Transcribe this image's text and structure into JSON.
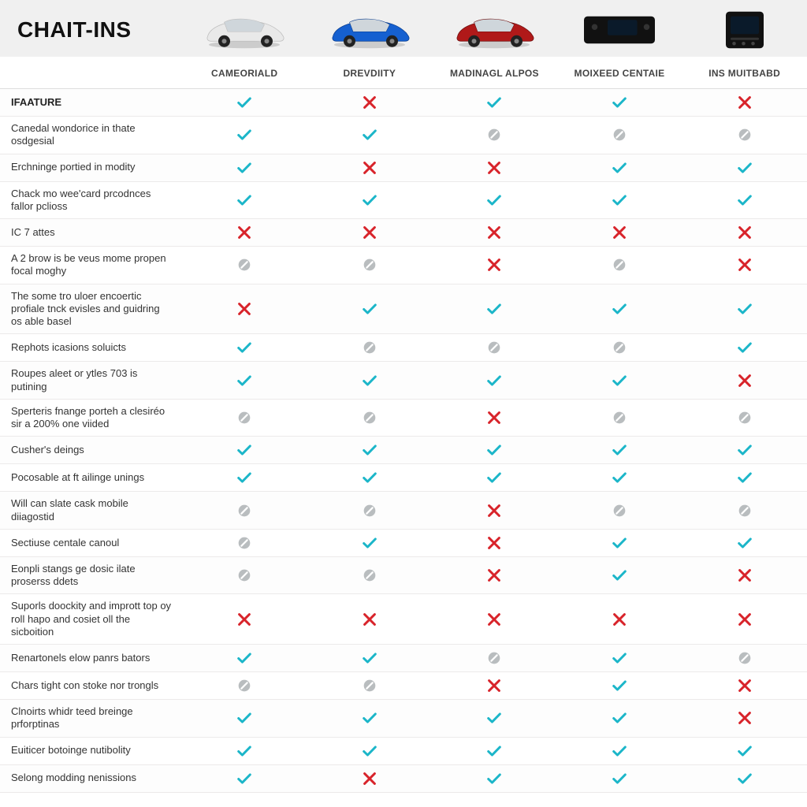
{
  "title": "CHAIT-INS",
  "colors": {
    "check": "#1cb6c9",
    "cross": "#d8232a",
    "neutral": "#b9bdbf",
    "header_bg": "#f0f0f0",
    "row_border": "#eceaea",
    "text": "#333333",
    "title_text": "#111111"
  },
  "columns": [
    {
      "id": "cameoriald",
      "label": "CAMEORIALD",
      "thumb": "car-white"
    },
    {
      "id": "drevdiity",
      "label": "DREVDIITY",
      "thumb": "car-blue"
    },
    {
      "id": "madinagl",
      "label": "MADINAGL ALPOS",
      "thumb": "car-red"
    },
    {
      "id": "moixeed",
      "label": "MOIXEED CENTAIE",
      "thumb": "device-wide"
    },
    {
      "id": "insmui",
      "label": "INS MUITBABD",
      "thumb": "device-square"
    }
  ],
  "section_label": "IFAATURE",
  "rows": [
    {
      "label": "IFAATURE",
      "section": true,
      "cells": [
        "check",
        "cross",
        "check",
        "check",
        "cross"
      ]
    },
    {
      "label": "Canedal wondorice in thate osdgesial",
      "cells": [
        "check",
        "check",
        "neutral",
        "neutral",
        "neutral"
      ]
    },
    {
      "label": "Erchninge portied in modity",
      "cells": [
        "check",
        "cross",
        "cross",
        "check",
        "check"
      ]
    },
    {
      "label": "Chack mo wee'card prcodnces fallor pclioss",
      "cells": [
        "check",
        "check",
        "check",
        "check",
        "check"
      ]
    },
    {
      "label": "IC 7 attes",
      "cells": [
        "cross",
        "cross",
        "cross",
        "cross",
        "cross"
      ]
    },
    {
      "label": "A 2 brow is be veus mome propen focal moghy",
      "cells": [
        "neutral",
        "neutral",
        "cross",
        "neutral",
        "cross"
      ]
    },
    {
      "label": "The some tro uloer encoertic profiale tnck evisles and guidring os able basel",
      "cells": [
        "cross",
        "check",
        "check",
        "check",
        "check"
      ]
    },
    {
      "label": "Rephots icasions soluicts",
      "cells": [
        "check",
        "neutral",
        "neutral",
        "neutral",
        "check"
      ]
    },
    {
      "label": "Roupes aleet or ytles 703 is putining",
      "cells": [
        "check",
        "check",
        "check",
        "check",
        "cross"
      ]
    },
    {
      "label": "Sperteris fnange porteh a clesiréo sir a 200% one viided",
      "cells": [
        "neutral",
        "neutral",
        "cross",
        "neutral",
        "neutral"
      ]
    },
    {
      "label": "Cusher's deings",
      "cells": [
        "check",
        "check",
        "check",
        "check",
        "check"
      ]
    },
    {
      "label": "Pocosable at ft ailinge unings",
      "cells": [
        "check",
        "check",
        "check",
        "check",
        "check"
      ]
    },
    {
      "label": "Will can slate cask mobile diiagostid",
      "cells": [
        "neutral",
        "neutral",
        "cross",
        "neutral",
        "neutral"
      ]
    },
    {
      "label": "Sectiuse centale canoul",
      "cells": [
        "neutral",
        "check",
        "cross",
        "check",
        "check"
      ]
    },
    {
      "label": "Eonpli stangs ge dosic ilate proserss ddets",
      "cells": [
        "neutral",
        "neutral",
        "cross",
        "check",
        "cross"
      ]
    },
    {
      "label": "Suporls doockity and imprott top oy roll hapo and cosiet oll the sicboition",
      "cells": [
        "cross",
        "cross",
        "cross",
        "cross",
        "cross"
      ]
    },
    {
      "label": "Renartonels elow panrs bators",
      "cells": [
        "check",
        "check",
        "neutral",
        "check",
        "neutral"
      ]
    },
    {
      "label": "Chars tight con stoke nor trongls",
      "cells": [
        "neutral",
        "neutral",
        "cross",
        "check",
        "cross"
      ]
    },
    {
      "label": "Clnoirts whidr teed breinge prforptinas",
      "cells": [
        "check",
        "check",
        "check",
        "check",
        "cross"
      ]
    },
    {
      "label": "Euiticer botoinge nutibolity",
      "cells": [
        "check",
        "check",
        "check",
        "check",
        "check"
      ]
    },
    {
      "label": "Selong modding nenissions",
      "cells": [
        "check",
        "cross",
        "check",
        "check",
        "check"
      ]
    }
  ],
  "icon_style": {
    "check_stroke_width": 3.2,
    "cross_stroke_width": 3.2,
    "neutral_radius": 8
  },
  "thumbs": {
    "car-white": {
      "body": "#e9e9e9",
      "accent": "#bdbdbd"
    },
    "car-blue": {
      "body": "#1560d0",
      "accent": "#0b3e8e"
    },
    "car-red": {
      "body": "#b01919",
      "accent": "#6e0f0f"
    },
    "device-wide": {
      "body": "#111111",
      "screen": "#0a1a2a"
    },
    "device-square": {
      "body": "#111111",
      "screen": "#0a1a2a"
    }
  }
}
